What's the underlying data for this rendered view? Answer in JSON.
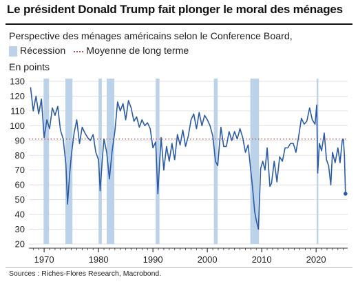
{
  "header": {
    "title": "Le président Donald Trump fait plonger le moral des ménages"
  },
  "legend": {
    "recession_label": "Récession",
    "average_label": "Moyenne de long terme"
  },
  "source": "Sources : Riches-Flores Research, Macrobond.",
  "colors": {
    "line": "#2a5ba6",
    "recession": "#bcd2e8",
    "average": "#c0504d",
    "grid": "#d9d9d9"
  },
  "chart_data": {
    "type": "line",
    "title": "Perspective des ménages américains selon le Conference Board,",
    "ylabel": "En points",
    "xlabel": "",
    "xlim": [
      1967.2,
      2025.8
    ],
    "ylim": [
      20,
      130
    ],
    "y_ticks": [
      20,
      30,
      40,
      50,
      60,
      70,
      80,
      90,
      100,
      110,
      120,
      130
    ],
    "x_ticks": [
      1970,
      1980,
      1990,
      2000,
      2010,
      2020
    ],
    "grid": "horizontal",
    "long_term_average": 91,
    "recessions": [
      [
        1969.9,
        1970.9
      ],
      [
        1973.9,
        1975.2
      ],
      [
        1980.0,
        1980.6
      ],
      [
        1981.5,
        1982.9
      ],
      [
        1990.5,
        1991.2
      ],
      [
        2001.2,
        2001.9
      ],
      [
        2007.9,
        2009.5
      ],
      [
        2020.1,
        2020.4
      ]
    ],
    "series": [
      {
        "name": "Perspective des ménages américains",
        "x": [
          1967.5,
          1968.0,
          1968.5,
          1969.0,
          1969.5,
          1970.0,
          1970.5,
          1971.0,
          1971.5,
          1972.0,
          1972.5,
          1973.0,
          1973.5,
          1974.0,
          1974.3,
          1974.7,
          1975.0,
          1975.5,
          1976.0,
          1976.5,
          1977.0,
          1977.5,
          1978.0,
          1978.5,
          1979.0,
          1979.5,
          1980.0,
          1980.3,
          1980.7,
          1981.0,
          1981.5,
          1982.0,
          1982.5,
          1983.0,
          1983.5,
          1984.0,
          1984.5,
          1985.0,
          1985.5,
          1986.0,
          1986.5,
          1987.0,
          1987.5,
          1988.0,
          1988.5,
          1989.0,
          1989.5,
          1990.0,
          1990.5,
          1990.9,
          1991.2,
          1991.5,
          1992.0,
          1992.5,
          1993.0,
          1993.5,
          1994.0,
          1994.5,
          1995.0,
          1995.5,
          1996.0,
          1996.5,
          1997.0,
          1997.5,
          1998.0,
          1998.5,
          1999.0,
          1999.5,
          2000.0,
          2000.5,
          2001.0,
          2001.5,
          2001.9,
          2002.5,
          2003.0,
          2003.5,
          2004.0,
          2004.5,
          2005.0,
          2005.5,
          2006.0,
          2006.5,
          2007.0,
          2007.5,
          2008.0,
          2008.3,
          2008.7,
          2009.0,
          2009.4,
          2009.8,
          2010.2,
          2010.6,
          2011.0,
          2011.5,
          2011.8,
          2012.3,
          2012.8,
          2013.3,
          2013.8,
          2014.3,
          2014.8,
          2015.3,
          2015.8,
          2016.3,
          2016.8,
          2017.3,
          2017.8,
          2018.3,
          2018.8,
          2019.3,
          2019.8,
          2020.1,
          2020.3,
          2020.6,
          2021.0,
          2021.5,
          2021.9,
          2022.3,
          2022.7,
          2023.0,
          2023.5,
          2024.0,
          2024.4,
          2024.8,
          2025.0,
          2025.2,
          2025.4
        ],
        "values": [
          126,
          110,
          120,
          108,
          118,
          92,
          104,
          98,
          112,
          107,
          113,
          97,
          91,
          74,
          47,
          68,
          80,
          95,
          104,
          88,
          99,
          95,
          92,
          90,
          94,
          82,
          77,
          56,
          78,
          91,
          82,
          64,
          83,
          96,
          116,
          110,
          115,
          104,
          117,
          112,
          103,
          106,
          99,
          104,
          100,
          102,
          98,
          85,
          89,
          54,
          73,
          92,
          70,
          86,
          76,
          88,
          77,
          94,
          87,
          97,
          86,
          93,
          104,
          108,
          98,
          109,
          100,
          107,
          104,
          100,
          93,
          76,
          73,
          99,
          86,
          86,
          96,
          90,
          96,
          91,
          98,
          92,
          82,
          87,
          69,
          59,
          42,
          36,
          30,
          71,
          76,
          70,
          85,
          59,
          61,
          76,
          62,
          79,
          76,
          85,
          85,
          88,
          88,
          82,
          93,
          105,
          101,
          103,
          112,
          104,
          101,
          114,
          68,
          88,
          83,
          95,
          77,
          73,
          60,
          82,
          75,
          85,
          75,
          90,
          91,
          80,
          54
        ]
      }
    ]
  }
}
